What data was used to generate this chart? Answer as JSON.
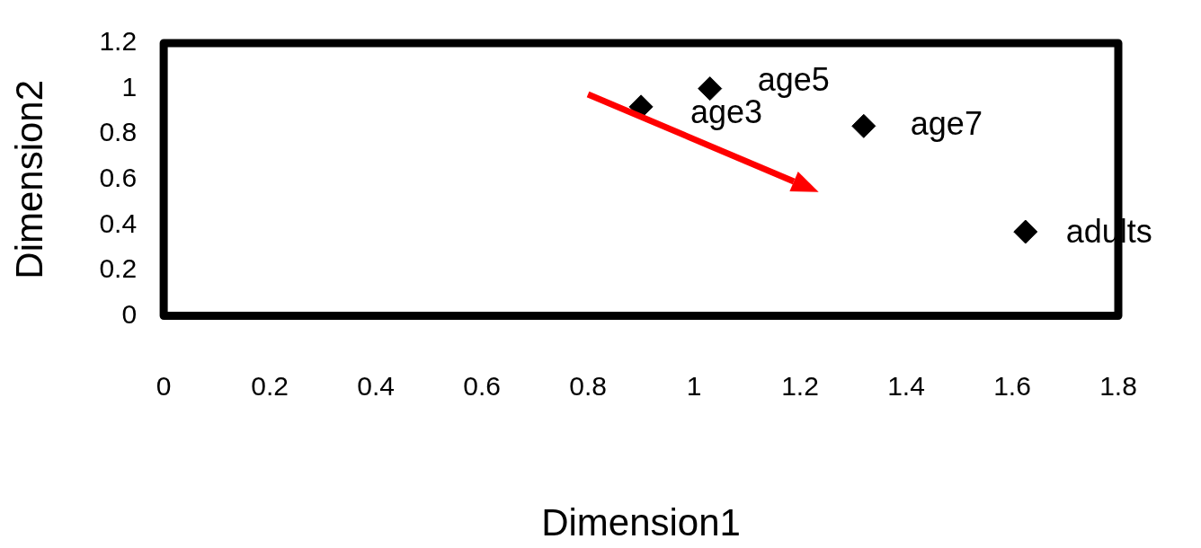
{
  "chart_data": {
    "type": "scatter",
    "xlabel": "Dimension1",
    "ylabel": "Dimension2",
    "x": [
      0.9,
      1.03,
      1.32,
      1.625
    ],
    "values": [
      0.92,
      1.0,
      0.835,
      0.37
    ],
    "color": "#000000",
    "marker": "diamond",
    "xlim": [
      0,
      1.8
    ],
    "xticks": [
      0,
      0.2,
      0.4,
      0.6,
      0.8,
      1,
      1.2,
      1.4,
      1.6,
      1.8
    ],
    "ylim": [
      0,
      1.2
    ],
    "yticks": [
      0,
      0.2,
      0.4,
      0.6,
      0.8,
      1,
      1.2
    ],
    "grid": false,
    "legend": false,
    "annotations": [
      {
        "text": "age3",
        "x": 0.9,
        "y": 0.92
      },
      {
        "text": "age5",
        "x": 1.03,
        "y": 1.0
      },
      {
        "text": "age7",
        "x": 1.32,
        "y": 0.835
      },
      {
        "text": "adults",
        "x": 1.625,
        "y": 0.37
      }
    ]
  }
}
